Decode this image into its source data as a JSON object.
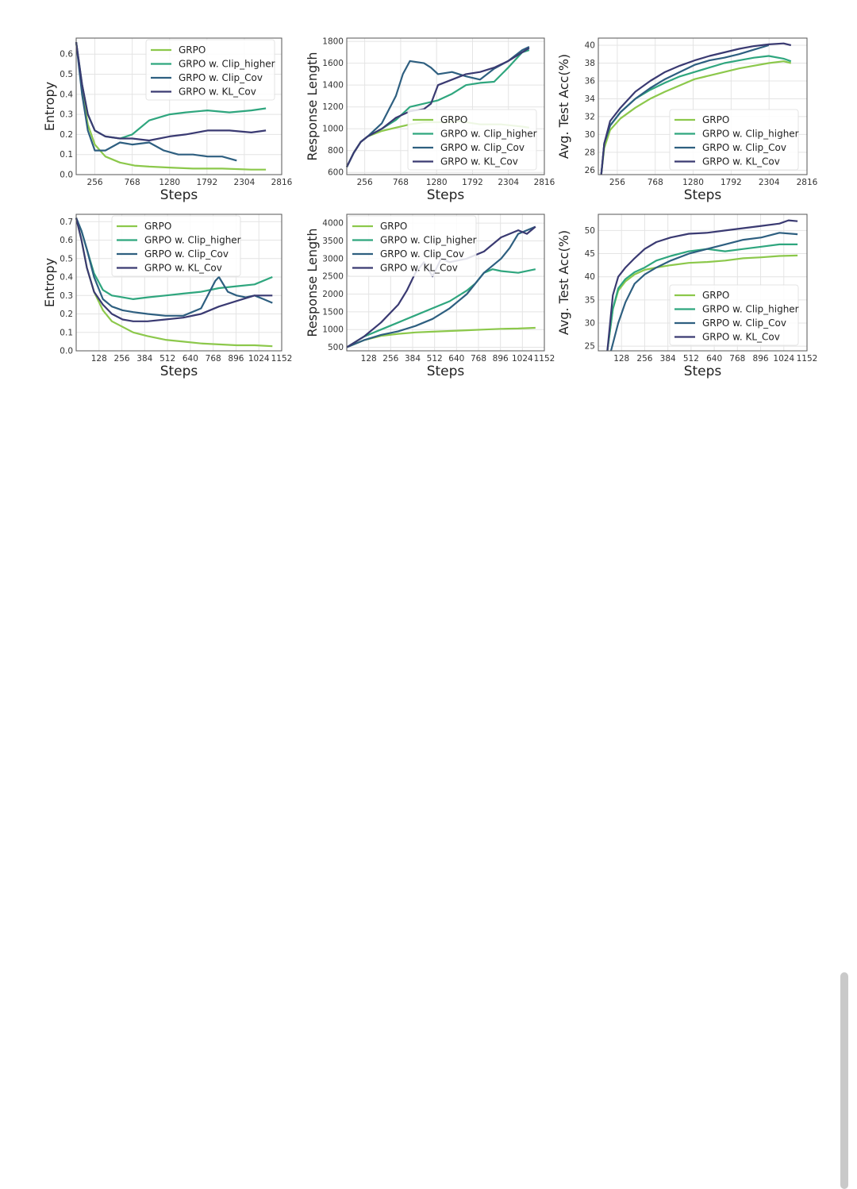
{
  "series_names": [
    "GRPO",
    "GRPO w. Clip_higher",
    "GRPO w. Clip_Cov",
    "GRPO w. KL_Cov"
  ],
  "series_colors": [
    "#8cc84b",
    "#2fa67e",
    "#2e5f80",
    "#3a3a72"
  ],
  "chart_data": [
    {
      "type": "line",
      "xlabel": "Steps",
      "ylabel": "Entropy",
      "xlim": [
        0,
        2816
      ],
      "ylim": [
        0,
        0.68
      ],
      "xticks": [
        256,
        768,
        1280,
        1792,
        2304,
        2816
      ],
      "yticks": [
        0.0,
        0.1,
        0.2,
        0.3,
        0.4,
        0.5,
        0.6
      ],
      "ytick_labels": [
        "0.0",
        "0.1",
        "0.2",
        "0.3",
        "0.4",
        "0.5",
        "0.6"
      ],
      "legend": "top-right",
      "grid": true,
      "series": [
        {
          "name": "GRPO",
          "x": [
            0,
            80,
            160,
            256,
            400,
            600,
            800,
            1000,
            1280,
            1600,
            2000,
            2400,
            2600
          ],
          "y": [
            0.66,
            0.42,
            0.25,
            0.15,
            0.09,
            0.06,
            0.045,
            0.04,
            0.035,
            0.03,
            0.03,
            0.025,
            0.025
          ]
        },
        {
          "name": "GRPO w. Clip_higher",
          "x": [
            0,
            80,
            160,
            256,
            400,
            600,
            768,
            1000,
            1280,
            1500,
            1800,
            2100,
            2400,
            2600
          ],
          "y": [
            0.66,
            0.45,
            0.3,
            0.22,
            0.19,
            0.18,
            0.2,
            0.27,
            0.3,
            0.31,
            0.32,
            0.31,
            0.32,
            0.33
          ]
        },
        {
          "name": "GRPO w. Clip_Cov",
          "x": [
            0,
            80,
            160,
            256,
            400,
            600,
            768,
            1000,
            1200,
            1400,
            1600,
            1800,
            2000,
            2200
          ],
          "y": [
            0.66,
            0.4,
            0.22,
            0.12,
            0.12,
            0.16,
            0.15,
            0.16,
            0.12,
            0.1,
            0.1,
            0.09,
            0.09,
            0.07
          ]
        },
        {
          "name": "GRPO w. KL_Cov",
          "x": [
            0,
            80,
            160,
            256,
            400,
            600,
            768,
            1000,
            1280,
            1500,
            1800,
            2100,
            2400,
            2600
          ],
          "y": [
            0.66,
            0.45,
            0.3,
            0.22,
            0.19,
            0.18,
            0.18,
            0.17,
            0.19,
            0.2,
            0.22,
            0.22,
            0.21,
            0.22
          ]
        }
      ]
    },
    {
      "type": "line",
      "xlabel": "Steps",
      "ylabel": "Response Length",
      "xlim": [
        0,
        2816
      ],
      "ylim": [
        580,
        1830
      ],
      "xticks": [
        256,
        768,
        1280,
        1792,
        2304,
        2816
      ],
      "yticks": [
        600,
        800,
        1000,
        1200,
        1400,
        1600,
        1800
      ],
      "ytick_labels": [
        "600",
        "800",
        "1000",
        "1200",
        "1400",
        "1600",
        "1800"
      ],
      "legend": "bottom-right",
      "grid": true,
      "series": [
        {
          "name": "GRPO",
          "x": [
            0,
            100,
            200,
            300,
            500,
            700,
            900,
            1100,
            1300,
            1600,
            1900,
            2200,
            2500,
            2600
          ],
          "y": [
            650,
            780,
            880,
            930,
            980,
            1010,
            1040,
            1060,
            1060,
            1070,
            1040,
            1040,
            1020,
            1010
          ]
        },
        {
          "name": "GRPO w. Clip_higher",
          "x": [
            0,
            100,
            200,
            300,
            500,
            700,
            900,
            1100,
            1300,
            1500,
            1700,
            1900,
            2100,
            2300,
            2500,
            2600
          ],
          "y": [
            650,
            780,
            880,
            930,
            1000,
            1080,
            1200,
            1230,
            1260,
            1320,
            1400,
            1420,
            1430,
            1560,
            1700,
            1720
          ]
        },
        {
          "name": "GRPO w. Clip_Cov",
          "x": [
            0,
            100,
            200,
            300,
            500,
            700,
            800,
            900,
            1100,
            1200,
            1300,
            1500,
            1700,
            1900,
            2100,
            2300,
            2500,
            2600
          ],
          "y": [
            650,
            780,
            880,
            930,
            1050,
            1300,
            1500,
            1620,
            1600,
            1560,
            1500,
            1520,
            1480,
            1450,
            1550,
            1620,
            1720,
            1750
          ]
        },
        {
          "name": "GRPO w. KL_Cov",
          "x": [
            0,
            100,
            200,
            300,
            500,
            700,
            900,
            1100,
            1200,
            1300,
            1500,
            1700,
            1900,
            2100,
            2300,
            2500,
            2600
          ],
          "y": [
            650,
            780,
            880,
            930,
            1000,
            1100,
            1160,
            1180,
            1230,
            1400,
            1450,
            1500,
            1520,
            1560,
            1620,
            1700,
            1740
          ]
        }
      ]
    },
    {
      "type": "line",
      "xlabel": "Steps",
      "ylabel": "Avg. Test Acc(%)",
      "xlim": [
        0,
        2816
      ],
      "ylim": [
        25.5,
        40.8
      ],
      "xticks": [
        256,
        768,
        1280,
        1792,
        2304,
        2816
      ],
      "yticks": [
        26,
        28,
        30,
        32,
        34,
        36,
        38,
        40
      ],
      "ytick_labels": [
        "26",
        "28",
        "30",
        "32",
        "34",
        "36",
        "38",
        "40"
      ],
      "legend": "bottom-right",
      "grid": true,
      "series": [
        {
          "name": "GRPO",
          "x": [
            40,
            80,
            160,
            300,
            500,
            700,
            900,
            1100,
            1300,
            1500,
            1700,
            1900,
            2100,
            2300,
            2500,
            2600
          ],
          "y": [
            25.5,
            28.5,
            30.5,
            31.8,
            33,
            34,
            34.8,
            35.5,
            36.2,
            36.6,
            37,
            37.4,
            37.7,
            38,
            38.2,
            38
          ]
        },
        {
          "name": "GRPO w. Clip_higher",
          "x": [
            40,
            80,
            160,
            300,
            500,
            700,
            900,
            1100,
            1300,
            1500,
            1700,
            1900,
            2100,
            2300,
            2500,
            2600
          ],
          "y": [
            25.5,
            29,
            31,
            32.5,
            34,
            35,
            35.8,
            36.5,
            37,
            37.5,
            38,
            38.3,
            38.6,
            38.8,
            38.5,
            38.2
          ]
        },
        {
          "name": "GRPO w. Clip_Cov",
          "x": [
            40,
            80,
            160,
            300,
            500,
            700,
            900,
            1100,
            1300,
            1500,
            1700,
            1900,
            2100,
            2300
          ],
          "y": [
            25.5,
            29,
            31,
            32.5,
            34,
            35.2,
            36.2,
            37,
            37.8,
            38.3,
            38.6,
            39,
            39.5,
            40
          ]
        },
        {
          "name": "GRPO w. KL_Cov",
          "x": [
            40,
            80,
            160,
            300,
            500,
            700,
            900,
            1100,
            1300,
            1500,
            1700,
            1900,
            2100,
            2300,
            2500,
            2600
          ],
          "y": [
            25.5,
            29,
            31.5,
            33,
            34.8,
            36,
            37,
            37.7,
            38.3,
            38.8,
            39.2,
            39.6,
            39.9,
            40.1,
            40.2,
            40
          ]
        }
      ]
    },
    {
      "type": "line",
      "xlabel": "Steps",
      "ylabel": "Entropy",
      "xlim": [
        0,
        1152
      ],
      "ylim": [
        0,
        0.74
      ],
      "xticks": [
        128,
        256,
        384,
        512,
        640,
        768,
        896,
        1024,
        1152
      ],
      "yticks": [
        0.0,
        0.1,
        0.2,
        0.3,
        0.4,
        0.5,
        0.6,
        0.7
      ],
      "ytick_labels": [
        "0.0",
        "0.1",
        "0.2",
        "0.3",
        "0.4",
        "0.5",
        "0.6",
        "0.7"
      ],
      "legend": "top-right",
      "grid": true,
      "series": [
        {
          "name": "GRPO",
          "x": [
            0,
            30,
            60,
            100,
            150,
            200,
            260,
            320,
            400,
            500,
            600,
            700,
            800,
            900,
            1000,
            1100
          ],
          "y": [
            0.72,
            0.6,
            0.45,
            0.32,
            0.22,
            0.16,
            0.13,
            0.1,
            0.08,
            0.06,
            0.05,
            0.04,
            0.035,
            0.03,
            0.03,
            0.025
          ]
        },
        {
          "name": "GRPO w. Clip_higher",
          "x": [
            0,
            30,
            60,
            100,
            150,
            200,
            260,
            320,
            400,
            500,
            600,
            700,
            800,
            900,
            1000,
            1100
          ],
          "y": [
            0.72,
            0.65,
            0.55,
            0.42,
            0.33,
            0.3,
            0.29,
            0.28,
            0.29,
            0.3,
            0.31,
            0.32,
            0.34,
            0.35,
            0.36,
            0.4
          ]
        },
        {
          "name": "GRPO w. Clip_Cov",
          "x": [
            0,
            30,
            60,
            100,
            150,
            200,
            260,
            320,
            400,
            500,
            600,
            700,
            780,
            800,
            850,
            900,
            950,
            1000,
            1050,
            1100
          ],
          "y": [
            0.72,
            0.65,
            0.55,
            0.4,
            0.28,
            0.24,
            0.22,
            0.21,
            0.2,
            0.19,
            0.19,
            0.23,
            0.38,
            0.4,
            0.32,
            0.3,
            0.29,
            0.3,
            0.28,
            0.26
          ]
        },
        {
          "name": "GRPO w. KL_Cov",
          "x": [
            0,
            30,
            60,
            100,
            150,
            200,
            260,
            320,
            400,
            500,
            600,
            700,
            800,
            900,
            1000,
            1100
          ],
          "y": [
            0.72,
            0.6,
            0.45,
            0.32,
            0.25,
            0.2,
            0.17,
            0.16,
            0.16,
            0.17,
            0.18,
            0.2,
            0.24,
            0.27,
            0.3,
            0.3
          ]
        }
      ]
    },
    {
      "type": "line",
      "xlabel": "Steps",
      "ylabel": "Response Length",
      "xlim": [
        0,
        1152
      ],
      "ylim": [
        400,
        4250
      ],
      "xticks": [
        128,
        256,
        384,
        512,
        640,
        768,
        896,
        1024,
        1152
      ],
      "yticks": [
        500,
        1000,
        1500,
        2000,
        2500,
        3000,
        3500,
        4000
      ],
      "ytick_labels": [
        "500",
        "1000",
        "1500",
        "2000",
        "2500",
        "3000",
        "3500",
        "4000"
      ],
      "legend": "top-left",
      "grid": true,
      "series": [
        {
          "name": "GRPO",
          "x": [
            0,
            100,
            200,
            300,
            400,
            500,
            600,
            700,
            800,
            900,
            1000,
            1100
          ],
          "y": [
            500,
            700,
            820,
            880,
            920,
            940,
            960,
            980,
            1000,
            1020,
            1030,
            1050
          ]
        },
        {
          "name": "GRPO w. Clip_higher",
          "x": [
            0,
            100,
            200,
            300,
            400,
            500,
            600,
            700,
            750,
            800,
            850,
            900,
            1000,
            1100
          ],
          "y": [
            500,
            800,
            1000,
            1200,
            1400,
            1600,
            1800,
            2100,
            2300,
            2600,
            2700,
            2650,
            2600,
            2700
          ]
        },
        {
          "name": "GRPO w. Clip_Cov",
          "x": [
            0,
            100,
            200,
            300,
            400,
            500,
            600,
            700,
            800,
            900,
            950,
            1000,
            1050,
            1100
          ],
          "y": [
            500,
            700,
            850,
            950,
            1100,
            1300,
            1600,
            2000,
            2600,
            3000,
            3300,
            3700,
            3800,
            3900
          ]
        },
        {
          "name": "GRPO w. KL_Cov",
          "x": [
            0,
            100,
            200,
            300,
            350,
            400,
            450,
            500,
            550,
            600,
            700,
            800,
            900,
            1000,
            1050,
            1100
          ],
          "y": [
            500,
            800,
            1200,
            1700,
            2100,
            2600,
            2900,
            2500,
            3000,
            2900,
            3000,
            3200,
            3600,
            3800,
            3700,
            3900
          ]
        }
      ]
    },
    {
      "type": "line",
      "xlabel": "Steps",
      "ylabel": "Avg. Test Acc(%)",
      "xlim": [
        0,
        1152
      ],
      "ylim": [
        24,
        53.5
      ],
      "xticks": [
        128,
        256,
        384,
        512,
        640,
        768,
        896,
        1024,
        1152
      ],
      "yticks": [
        25,
        30,
        35,
        40,
        45,
        50
      ],
      "ytick_labels": [
        "25",
        "30",
        "35",
        "40",
        "45",
        "50"
      ],
      "legend": "bottom-right",
      "grid": true,
      "series": [
        {
          "name": "GRPO",
          "x": [
            50,
            80,
            110,
            150,
            200,
            256,
            320,
            400,
            500,
            600,
            700,
            800,
            900,
            1000,
            1100
          ],
          "y": [
            24,
            33,
            37,
            39,
            40.5,
            41.5,
            42,
            42.5,
            43,
            43.2,
            43.5,
            44,
            44.2,
            44.5,
            44.6
          ]
        },
        {
          "name": "GRPO w. Clip_higher",
          "x": [
            50,
            80,
            110,
            150,
            200,
            256,
            320,
            400,
            500,
            600,
            700,
            800,
            900,
            1000,
            1100
          ],
          "y": [
            24,
            33,
            37.5,
            39.5,
            41,
            42,
            43.5,
            44.5,
            45.5,
            46,
            45.5,
            46,
            46.5,
            47,
            47
          ]
        },
        {
          "name": "GRPO w. Clip_Cov",
          "x": [
            70,
            110,
            150,
            200,
            256,
            320,
            400,
            500,
            600,
            700,
            800,
            900,
            1000,
            1100
          ],
          "y": [
            24,
            30,
            34.5,
            38.5,
            40.5,
            42,
            43.5,
            45,
            46,
            47,
            48,
            48.5,
            49.5,
            49.2
          ]
        },
        {
          "name": "GRPO w. KL_Cov",
          "x": [
            50,
            80,
            110,
            150,
            200,
            256,
            320,
            400,
            500,
            600,
            700,
            800,
            900,
            1000,
            1050,
            1100
          ],
          "y": [
            24,
            36,
            40,
            42,
            44,
            46,
            47.5,
            48.5,
            49.3,
            49.5,
            50,
            50.5,
            51,
            51.5,
            52.2,
            52
          ]
        }
      ]
    }
  ]
}
